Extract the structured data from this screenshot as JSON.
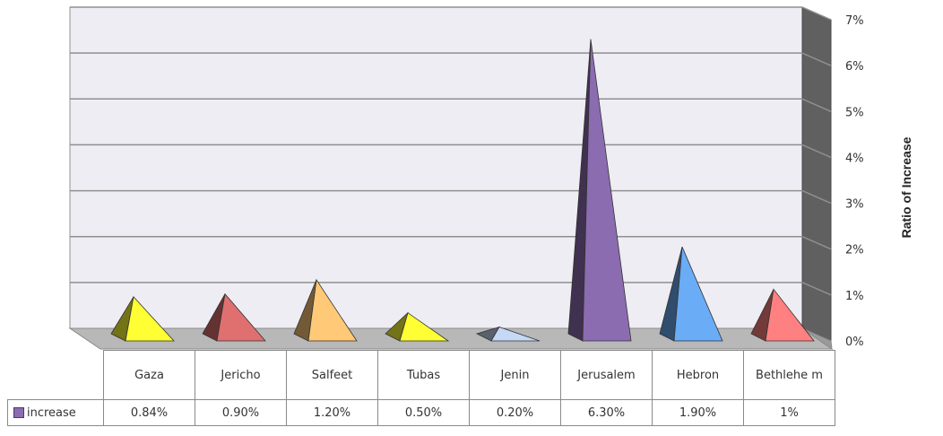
{
  "chart_data": {
    "type": "bar",
    "style": "3d-pyramid",
    "categories": [
      "Gaza",
      "Jericho",
      "Salfeet",
      "Tubas",
      "Jenin",
      "Jerusalem",
      "Hebron",
      "Bethlehem"
    ],
    "category_labels": [
      "Gaza",
      "Jericho",
      "Salfeet",
      "Tubas",
      "Jenin",
      "Jerusalem",
      "Hebron",
      "Bethlehe m"
    ],
    "series": [
      {
        "name": "increase",
        "values": [
          0.84,
          0.9,
          1.2,
          0.5,
          0.2,
          6.3,
          1.9,
          1.0
        ],
        "value_labels": [
          "0.84%",
          "0.90%",
          "1.20%",
          "0.50%",
          "0.20%",
          "6.30%",
          "1.90%",
          "1%"
        ]
      }
    ],
    "bar_colors": [
      "#ffff33",
      "#e07070",
      "#ffc977",
      "#ffff33",
      "#c5d8f5",
      "#8b6cb0",
      "#6aacf5",
      "#ff8080"
    ],
    "ylabel": "Ratio of Increase",
    "ylim": [
      0,
      7
    ],
    "y_ticks": [
      "0%",
      "1%",
      "2%",
      "3%",
      "4%",
      "5%",
      "6%",
      "7%"
    ],
    "y_axis_position": "right",
    "grid": true,
    "legend": "in data table",
    "data_table": true
  }
}
